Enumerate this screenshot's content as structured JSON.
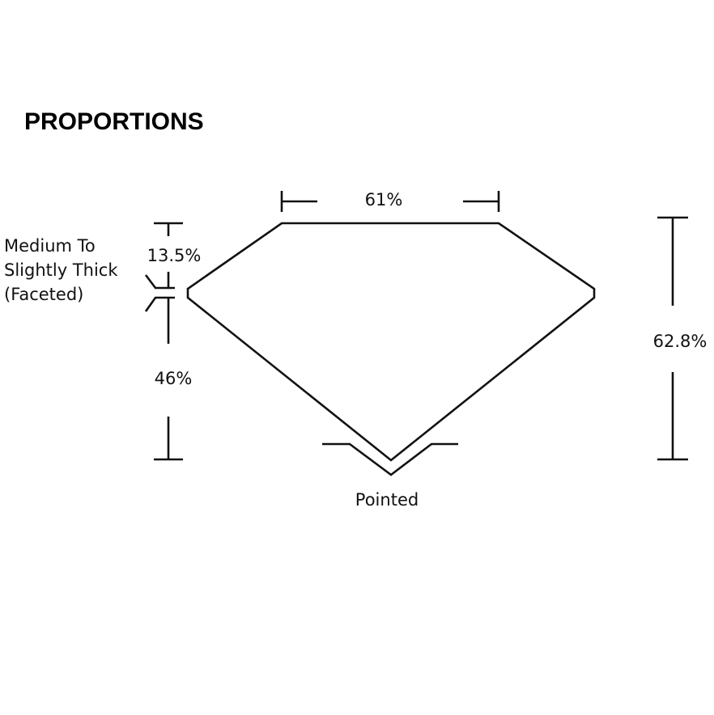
{
  "title": "PROPORTIONS",
  "labels": {
    "table": "61%",
    "crown": "13.5%",
    "pavilion": "46%",
    "depth": "62.8%",
    "girdle_line1": "Medium To",
    "girdle_line2": "Slightly Thick",
    "girdle_line3": "(Faceted)",
    "culet": "Pointed"
  }
}
